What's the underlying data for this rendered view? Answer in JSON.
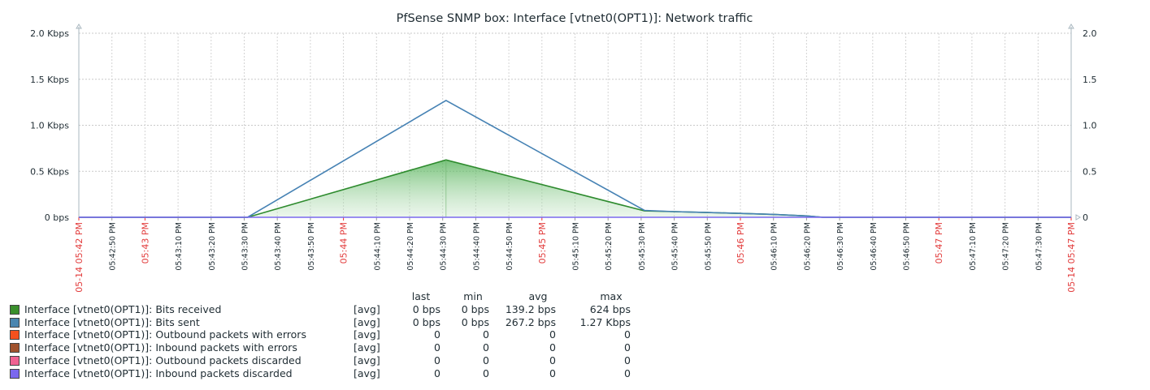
{
  "chart_data": {
    "type": "area",
    "title": "PfSense SNMP box: Interface [vtnet0(OPT1)]: Network traffic",
    "ylim": [
      0,
      2000
    ],
    "y_ticks_left": [
      "0 bps",
      "0.5 Kbps",
      "1.0 Kbps",
      "1.5 Kbps",
      "2.0 Kbps"
    ],
    "y_ticks_right": [
      "0",
      "0.5",
      "1.0",
      "1.5",
      "2.0"
    ],
    "grid": true,
    "x_labels": [
      {
        "label": "05-14 05:42 PM",
        "red": true
      },
      {
        "label": "05:42:50 PM",
        "red": false
      },
      {
        "label": "05:43 PM",
        "red": true
      },
      {
        "label": "05:43:10 PM",
        "red": false
      },
      {
        "label": "05:43:20 PM",
        "red": false
      },
      {
        "label": "05:43:30 PM",
        "red": false
      },
      {
        "label": "05:43:40 PM",
        "red": false
      },
      {
        "label": "05:43:50 PM",
        "red": false
      },
      {
        "label": "05:44 PM",
        "red": true
      },
      {
        "label": "05:44:10 PM",
        "red": false
      },
      {
        "label": "05:44:20 PM",
        "red": false
      },
      {
        "label": "05:44:30 PM",
        "red": false
      },
      {
        "label": "05:44:40 PM",
        "red": false
      },
      {
        "label": "05:44:50 PM",
        "red": false
      },
      {
        "label": "05:45 PM",
        "red": true
      },
      {
        "label": "05:45:10 PM",
        "red": false
      },
      {
        "label": "05:45:20 PM",
        "red": false
      },
      {
        "label": "05:45:30 PM",
        "red": false
      },
      {
        "label": "05:45:40 PM",
        "red": false
      },
      {
        "label": "05:45:50 PM",
        "red": false
      },
      {
        "label": "05:46 PM",
        "red": true
      },
      {
        "label": "05:46:10 PM",
        "red": false
      },
      {
        "label": "05:46:20 PM",
        "red": false
      },
      {
        "label": "05:46:30 PM",
        "red": false
      },
      {
        "label": "05:46:40 PM",
        "red": false
      },
      {
        "label": "05:46:50 PM",
        "red": false
      },
      {
        "label": "05:47 PM",
        "red": true
      },
      {
        "label": "05:47:10 PM",
        "red": false
      },
      {
        "label": "05:47:20 PM",
        "red": false
      },
      {
        "label": "05:47:30 PM",
        "red": false
      },
      {
        "label": "05-14 05:47 PM",
        "red": true
      }
    ],
    "series": [
      {
        "name": "Interface [vtnet0(OPT1)]: Bits received",
        "color": "#2e8b2e",
        "style": "filled",
        "points": [
          [
            0,
            0
          ],
          [
            51,
            0
          ],
          [
            111,
            624
          ],
          [
            171,
            70
          ],
          [
            180,
            62
          ],
          [
            190,
            52
          ],
          [
            200,
            42
          ],
          [
            210,
            32
          ],
          [
            220,
            15
          ],
          [
            225,
            0
          ],
          [
            300,
            0
          ]
        ]
      },
      {
        "name": "Interface [vtnet0(OPT1)]: Bits sent",
        "color": "#4682b4",
        "style": "line",
        "points": [
          [
            0,
            0
          ],
          [
            51,
            0
          ],
          [
            111,
            1270
          ],
          [
            171,
            75
          ],
          [
            180,
            62
          ],
          [
            190,
            52
          ],
          [
            200,
            42
          ],
          [
            210,
            32
          ],
          [
            220,
            15
          ],
          [
            225,
            0
          ],
          [
            300,
            0
          ]
        ]
      },
      {
        "name": "Interface [vtnet0(OPT1)]: Inbound packets discarded",
        "color": "#7b68ee",
        "style": "line",
        "points": [
          [
            0,
            0
          ],
          [
            300,
            0
          ]
        ]
      }
    ],
    "legend": {
      "headers": {
        "last": "last",
        "min": "min",
        "avg": "avg",
        "max": "max"
      },
      "rows": [
        {
          "color": "#3a8f2c",
          "name": "Interface [vtnet0(OPT1)]: Bits received",
          "func": "[avg]",
          "last": "0 bps",
          "min": "0 bps",
          "avg": "139.2 bps",
          "max": "624 bps"
        },
        {
          "color": "#4a86b0",
          "name": "Interface [vtnet0(OPT1)]: Bits sent",
          "func": "[avg]",
          "last": "0 bps",
          "min": "0 bps",
          "avg": "267.2 bps",
          "max": "1.27 Kbps"
        },
        {
          "color": "#f4511e",
          "name": "Interface [vtnet0(OPT1)]: Outbound packets with errors",
          "func": "[avg]",
          "last": "0",
          "min": "0",
          "avg": "0",
          "max": "0"
        },
        {
          "color": "#a0522d",
          "name": "Interface [vtnet0(OPT1)]: Inbound packets with errors",
          "func": "[avg]",
          "last": "0",
          "min": "0",
          "avg": "0",
          "max": "0"
        },
        {
          "color": "#f06292",
          "name": "Interface [vtnet0(OPT1)]: Outbound packets discarded",
          "func": "[avg]",
          "last": "0",
          "min": "0",
          "avg": "0",
          "max": "0"
        },
        {
          "color": "#7b68ee",
          "name": "Interface [vtnet0(OPT1)]: Inbound packets discarded",
          "func": "[avg]",
          "last": "0",
          "min": "0",
          "avg": "0",
          "max": "0"
        }
      ]
    }
  }
}
